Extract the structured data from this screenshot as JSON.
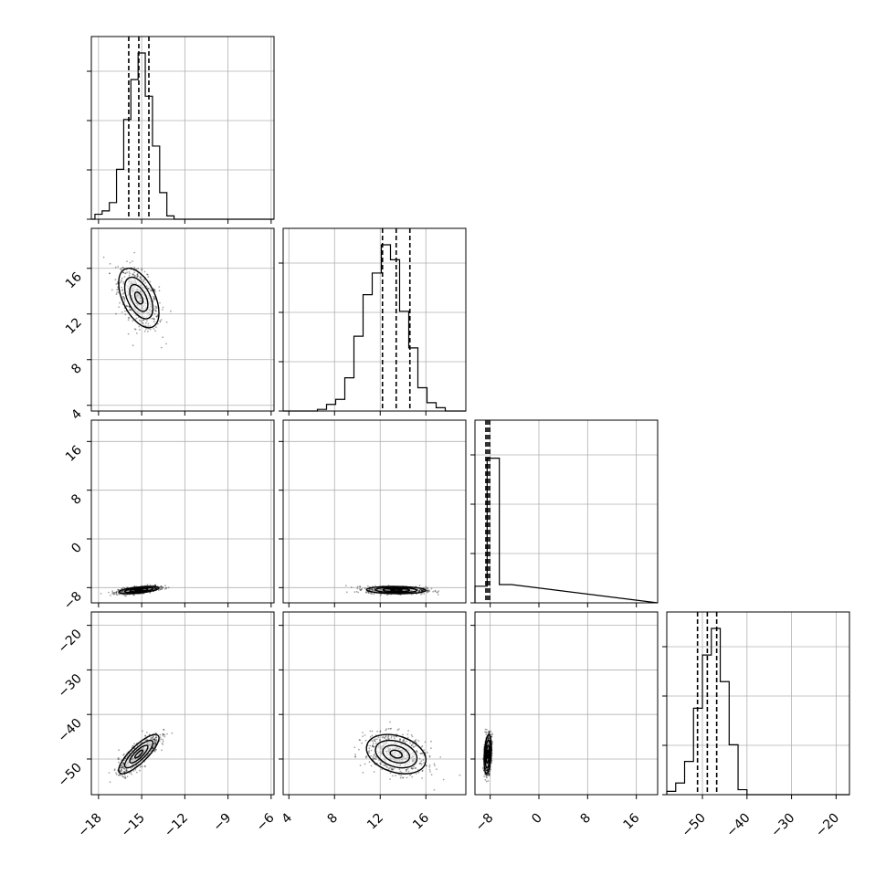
{
  "chart_data": {
    "type": "corner",
    "title": "",
    "parameters": [
      {
        "label": "",
        "range": [
          -18.5,
          -5.8
        ],
        "ticks": [
          -18,
          -15,
          -12,
          -9,
          -6
        ],
        "tick_labels": [
          "−18",
          "−15",
          "−12",
          "−9",
          "−6"
        ],
        "median": -15.2,
        "q16": -15.9,
        "q84": -14.5,
        "mean": -15.2,
        "sd": 0.7
      },
      {
        "label": "",
        "range": [
          3.5,
          19.5
        ],
        "ticks": [
          4,
          8,
          12,
          16
        ],
        "tick_labels": [
          "4",
          "8",
          "12",
          "16"
        ],
        "median": 13.4,
        "q16": 12.2,
        "q84": 14.6,
        "mean": 13.4,
        "sd": 1.3
      },
      {
        "label": "",
        "range": [
          -10.5,
          19.5
        ],
        "ticks": [
          -8,
          0,
          8,
          16
        ],
        "tick_labels": [
          "−8",
          "0",
          "8",
          "16"
        ],
        "median": -8.4,
        "q16": -8.7,
        "q84": -8.1,
        "mean": -8.4,
        "sd": 0.3
      },
      {
        "label": "",
        "range": [
          -58,
          -17
        ],
        "ticks": [
          -50,
          -40,
          -30,
          -20
        ],
        "tick_labels": [
          "−50",
          "−40",
          "−30",
          "−20"
        ],
        "median": -48.9,
        "q16": -51.1,
        "q84": -46.8,
        "mean": -48.9,
        "sd": 2.2
      }
    ],
    "correlations": [
      [
        1,
        -0.5,
        0.55,
        0.82
      ],
      [
        -0.5,
        1,
        -0.1,
        -0.3
      ],
      [
        0.55,
        -0.1,
        1,
        0.3
      ],
      [
        0.82,
        -0.3,
        0.3,
        1
      ]
    ],
    "histograms": [
      {
        "param": 0,
        "bins": [
          -18.25,
          -17.75,
          -17.25,
          -16.75,
          -16.25,
          -15.75,
          -15.25,
          -14.75,
          -14.25,
          -13.75,
          -13.25,
          -12.75
        ],
        "counts": [
          0.03,
          0.05,
          0.1,
          0.3,
          0.6,
          0.84,
          1.0,
          0.74,
          0.44,
          0.16,
          0.02,
          0.0
        ]
      },
      {
        "param": 1,
        "bins": [
          6.5,
          7.3,
          8.1,
          8.9,
          9.7,
          10.5,
          11.3,
          12.1,
          12.9,
          13.7,
          14.5,
          15.3,
          16.1,
          16.9,
          17.7,
          18.5
        ],
        "counts": [
          0.01,
          0.04,
          0.07,
          0.2,
          0.45,
          0.7,
          0.83,
          1.0,
          0.91,
          0.6,
          0.38,
          0.14,
          0.05,
          0.02,
          0.0,
          0.0
        ]
      },
      {
        "param": 2,
        "bins": [
          -10.5,
          -8.5,
          -6.5
        ],
        "counts": [
          0.1,
          0.87,
          0.11
        ]
      },
      {
        "param": 3,
        "bins": [
          -58,
          -56,
          -54,
          -52,
          -50,
          -48,
          -46,
          -44,
          -42,
          -40,
          -38,
          -36
        ],
        "counts": [
          0.02,
          0.07,
          0.2,
          0.52,
          0.84,
          1.0,
          0.68,
          0.3,
          0.03,
          0.0,
          0.0,
          0.0
        ]
      }
    ],
    "grid": true
  }
}
